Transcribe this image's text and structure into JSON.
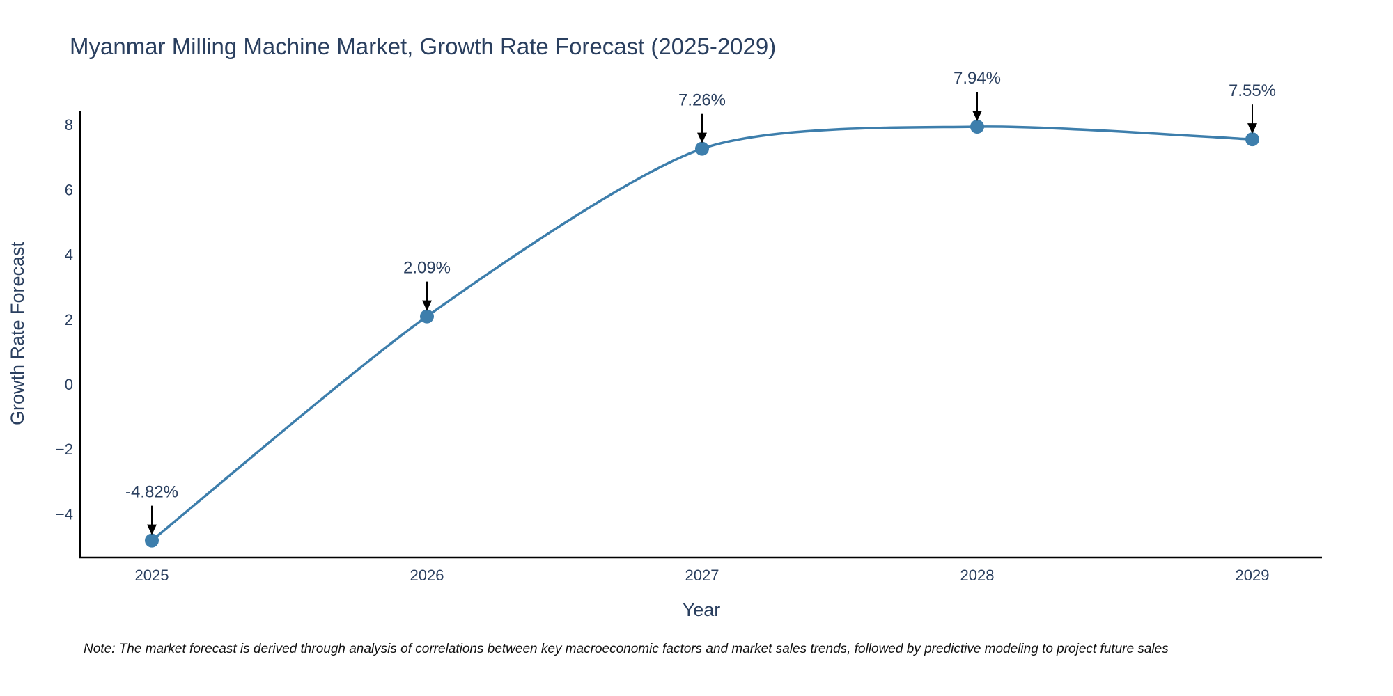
{
  "chart_data": {
    "type": "line",
    "title": "Myanmar Milling Machine Market, Growth Rate Forecast (2025-2029)",
    "xlabel": "Year",
    "ylabel": "Growth Rate Forecast",
    "categories": [
      "2025",
      "2026",
      "2027",
      "2028",
      "2029"
    ],
    "series": [
      {
        "name": "Growth Rate Forecast",
        "values": [
          -4.82,
          2.09,
          7.26,
          7.94,
          7.55
        ],
        "labels": [
          "-4.82%",
          "2.09%",
          "7.26%",
          "7.94%",
          "7.55%"
        ]
      }
    ],
    "ylim": [
      -5.4,
      8.4
    ],
    "yticks": [
      -4,
      -2,
      0,
      2,
      4,
      6,
      8
    ],
    "ytick_labels": [
      "−4",
      "−2",
      "0",
      "2",
      "4",
      "6",
      "8"
    ],
    "grid": false,
    "line_shape": "spline",
    "colors": {
      "line": "#3d7eac",
      "marker": "#3d7eac",
      "axis": "#000000",
      "text": "#2a3f5f",
      "annotation_arrow": "#000000"
    }
  },
  "note": "Note: The market forecast is derived through analysis of correlations between key macroeconomic factors and market sales trends, followed by predictive modeling to project future sales"
}
